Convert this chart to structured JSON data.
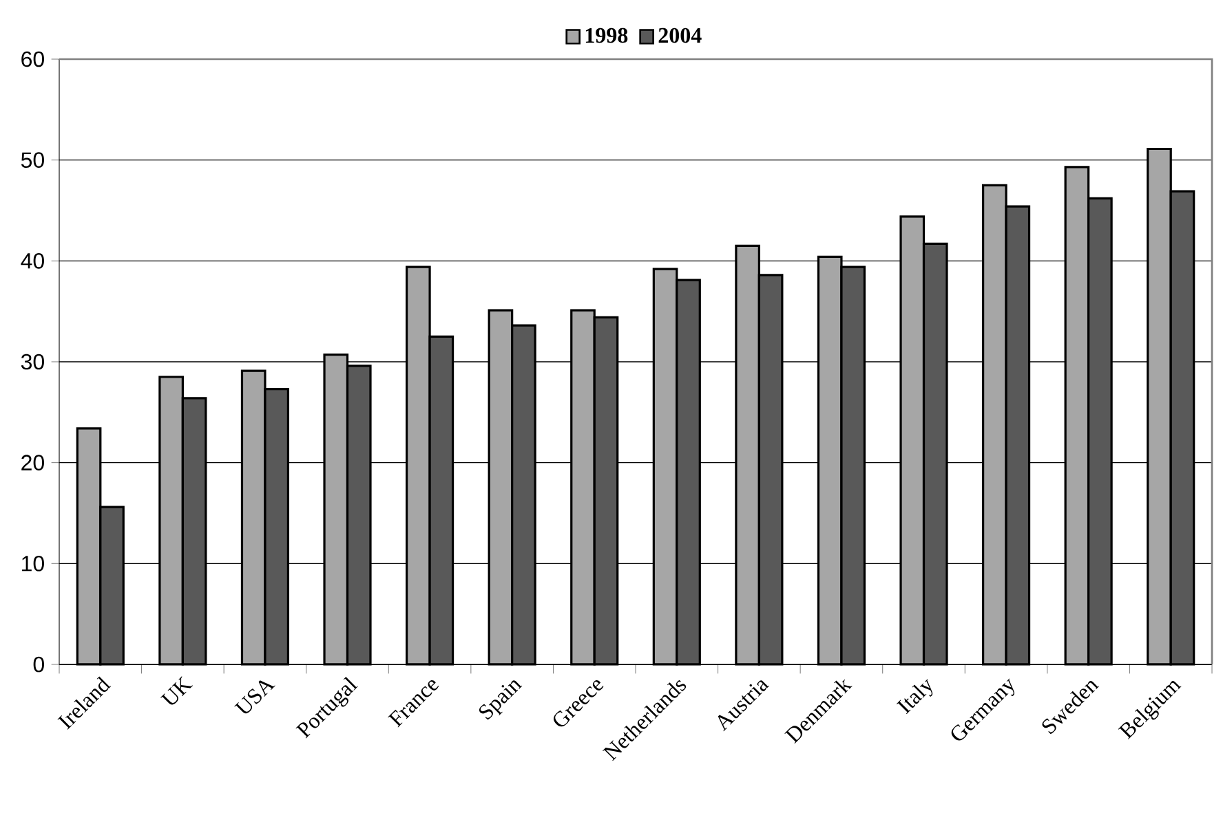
{
  "chart_data": {
    "type": "bar",
    "categories": [
      "Ireland",
      "UK",
      "USA",
      "Portugal",
      "France",
      "Spain",
      "Greece",
      "Netherlands",
      "Austria",
      "Denmark",
      "Italy",
      "Germany",
      "Sweden",
      "Belgium"
    ],
    "series": [
      {
        "name": "1998",
        "color": "#a6a6a6",
        "values": [
          23.4,
          28.5,
          29.1,
          30.7,
          39.4,
          35.1,
          35.1,
          39.2,
          41.5,
          40.4,
          44.4,
          47.5,
          49.3,
          51.1
        ]
      },
      {
        "name": "2004",
        "color": "#595959",
        "values": [
          15.6,
          26.4,
          27.3,
          29.6,
          32.5,
          33.6,
          34.4,
          38.1,
          38.6,
          39.4,
          41.7,
          45.4,
          46.2,
          46.9
        ]
      }
    ],
    "ylim": [
      0,
      60
    ],
    "yticks": [
      0,
      10,
      20,
      30,
      40,
      50,
      60
    ],
    "grid": "y",
    "legend": "top"
  }
}
